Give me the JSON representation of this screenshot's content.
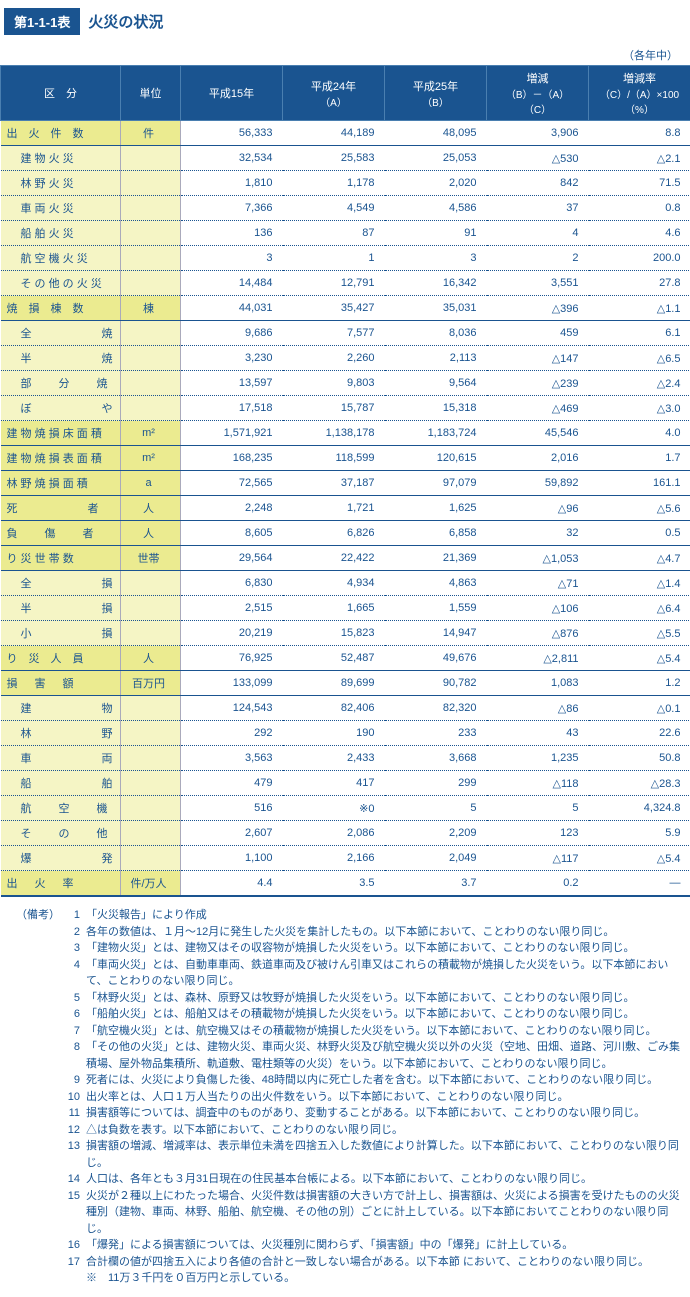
{
  "header": {
    "tab": "第1-1-1表",
    "title": "火災の状況"
  },
  "unit_note": "（各年中）",
  "columns": [
    {
      "label": "区　分"
    },
    {
      "label": "単位"
    },
    {
      "label": "平成15年"
    },
    {
      "label": "平成24年",
      "sub": "（A）"
    },
    {
      "label": "平成25年",
      "sub": "（B）"
    },
    {
      "label": "増減",
      "sub": "（B）－（A）\n（C）"
    },
    {
      "label": "増減率",
      "sub": "（C）/（A）×100\n（%）"
    }
  ],
  "rows": [
    {
      "main": true,
      "cat": "出　火　件　数",
      "unit": "件",
      "v": [
        "56,333",
        "44,189",
        "48,095",
        "3,906",
        "8.8"
      ]
    },
    {
      "cat": "建 物 火 災",
      "indent": true,
      "unit": "",
      "v": [
        "32,534",
        "25,583",
        "25,053",
        "△530",
        "△2.1"
      ]
    },
    {
      "cat": "林 野 火 災",
      "indent": true,
      "unit": "",
      "v": [
        "1,810",
        "1,178",
        "2,020",
        "842",
        "71.5"
      ]
    },
    {
      "cat": "車 両 火 災",
      "indent": true,
      "unit": "",
      "v": [
        "7,366",
        "4,549",
        "4,586",
        "37",
        "0.8"
      ]
    },
    {
      "cat": "船 舶 火 災",
      "indent": true,
      "unit": "",
      "v": [
        "136",
        "87",
        "91",
        "4",
        "4.6"
      ]
    },
    {
      "cat": "航 空 機 火 災",
      "indent": true,
      "unit": "",
      "v": [
        "3",
        "1",
        "3",
        "2",
        "200.0"
      ]
    },
    {
      "cat": "そ の 他 の 火 災",
      "indent": true,
      "unit": "",
      "v": [
        "14,484",
        "12,791",
        "16,342",
        "3,551",
        "27.8"
      ]
    },
    {
      "main": true,
      "cat": "焼　損　棟　数",
      "unit": "棟",
      "v": [
        "44,031",
        "35,427",
        "35,031",
        "△396",
        "△1.1"
      ]
    },
    {
      "cat": "全　　焼",
      "indent": true,
      "sp": "sp3",
      "unit": "",
      "v": [
        "9,686",
        "7,577",
        "8,036",
        "459",
        "6.1"
      ]
    },
    {
      "cat": "半　　焼",
      "indent": true,
      "sp": "sp3",
      "unit": "",
      "v": [
        "3,230",
        "2,260",
        "2,113",
        "△147",
        "△6.5"
      ]
    },
    {
      "cat": "部　分　焼",
      "indent": true,
      "sp": "sp2",
      "unit": "",
      "v": [
        "13,597",
        "9,803",
        "9,564",
        "△239",
        "△2.4"
      ]
    },
    {
      "cat": "ぼ　　や",
      "indent": true,
      "sp": "sp3",
      "unit": "",
      "v": [
        "17,518",
        "15,787",
        "15,318",
        "△469",
        "△3.0"
      ]
    },
    {
      "main": true,
      "cat": "建 物 焼 損 床 面 積",
      "unit": "m²",
      "v": [
        "1,571,921",
        "1,138,178",
        "1,183,724",
        "45,546",
        "4.0"
      ]
    },
    {
      "main": true,
      "cat": "建 物 焼 損 表 面 積",
      "unit": "m²",
      "v": [
        "168,235",
        "118,599",
        "120,615",
        "2,016",
        "1.7"
      ]
    },
    {
      "main": true,
      "cat": "林 野 焼 損 面 積",
      "unit": "a",
      "v": [
        "72,565",
        "37,187",
        "97,079",
        "59,892",
        "161.1"
      ]
    },
    {
      "main": true,
      "cat": "死　　者",
      "sp": "sp3",
      "unit": "人",
      "v": [
        "2,248",
        "1,721",
        "1,625",
        "△96",
        "△5.6"
      ]
    },
    {
      "main": true,
      "cat": "負　傷　者",
      "sp": "sp2",
      "unit": "人",
      "v": [
        "8,605",
        "6,826",
        "6,858",
        "32",
        "0.5"
      ]
    },
    {
      "main": true,
      "cat": "り 災 世 帯 数",
      "unit": "世帯",
      "v": [
        "29,564",
        "22,422",
        "21,369",
        "△1,053",
        "△4.7"
      ]
    },
    {
      "cat": "全　　損",
      "indent": true,
      "sp": "sp3",
      "unit": "",
      "v": [
        "6,830",
        "4,934",
        "4,863",
        "△71",
        "△1.4"
      ]
    },
    {
      "cat": "半　　損",
      "indent": true,
      "sp": "sp3",
      "unit": "",
      "v": [
        "2,515",
        "1,665",
        "1,559",
        "△106",
        "△6.4"
      ]
    },
    {
      "cat": "小　　損",
      "indent": true,
      "sp": "sp3",
      "unit": "",
      "v": [
        "20,219",
        "15,823",
        "14,947",
        "△876",
        "△5.5"
      ]
    },
    {
      "main": true,
      "cat": "り　災　人　員",
      "unit": "人",
      "v": [
        "76,925",
        "52,487",
        "49,676",
        "△2,811",
        "△5.4"
      ]
    },
    {
      "main": true,
      "cat": "損　害　額",
      "sp": "sp",
      "unit": "百万円",
      "v": [
        "133,099",
        "89,699",
        "90,782",
        "1,083",
        "1.2"
      ]
    },
    {
      "cat": "建　　物",
      "indent": true,
      "sp": "sp3",
      "unit": "",
      "v": [
        "124,543",
        "82,406",
        "82,320",
        "△86",
        "△0.1"
      ]
    },
    {
      "cat": "林　　野",
      "indent": true,
      "sp": "sp3",
      "unit": "",
      "v": [
        "292",
        "190",
        "233",
        "43",
        "22.6"
      ]
    },
    {
      "cat": "車　　両",
      "indent": true,
      "sp": "sp3",
      "unit": "",
      "v": [
        "3,563",
        "2,433",
        "3,668",
        "1,235",
        "50.8"
      ]
    },
    {
      "cat": "船　　舶",
      "indent": true,
      "sp": "sp3",
      "unit": "",
      "v": [
        "479",
        "417",
        "299",
        "△118",
        "△28.3"
      ]
    },
    {
      "cat": "航　空　機",
      "indent": true,
      "sp": "sp2",
      "unit": "",
      "v": [
        "516",
        "※0",
        "5",
        "5",
        "4,324.8"
      ]
    },
    {
      "cat": "そ　の　他",
      "indent": true,
      "sp": "sp2",
      "unit": "",
      "v": [
        "2,607",
        "2,086",
        "2,209",
        "123",
        "5.9"
      ]
    },
    {
      "cat": "爆　　発",
      "indent": true,
      "sp": "sp3",
      "unit": "",
      "v": [
        "1,100",
        "2,166",
        "2,049",
        "△117",
        "△5.4"
      ]
    },
    {
      "main": true,
      "last": true,
      "cat": "出　火　率",
      "sp": "sp",
      "unit": "件/万人",
      "v": [
        "4.4",
        "3.5",
        "3.7",
        "0.2",
        "—"
      ]
    }
  ],
  "footnotes": {
    "prefix": "（備考）",
    "items": [
      "「火災報告」により作成",
      "各年の数値は、１月～12月に発生した火災を集計したもの。以下本節において、ことわりのない限り同じ。",
      "「建物火災」とは、建物又はその収容物が焼損した火災をいう。以下本節において、ことわりのない限り同じ。",
      "「車両火災」とは、自動車車両、鉄道車両及び被けん引車又はこれらの積載物が焼損した火災をいう。以下本節において、ことわりのない限り同じ。",
      "「林野火災」とは、森林、原野又は牧野が焼損した火災をいう。以下本節において、ことわりのない限り同じ。",
      "「船舶火災」とは、船舶又はその積載物が焼損した火災をいう。以下本節において、ことわりのない限り同じ。",
      "「航空機火災」とは、航空機又はその積載物が焼損した火災をいう。以下本節において、ことわりのない限り同じ。",
      "「その他の火災」とは、建物火災、車両火災、林野火災及び航空機火災以外の火災（空地、田畑、道路、河川敷、ごみ集積場、屋外物品集積所、軌道敷、電柱類等の火災）をいう。以下本節において、ことわりのない限り同じ。",
      "死者には、火災により負傷した後、48時間以内に死亡した者を含む。以下本節において、ことわりのない限り同じ。",
      "出火率とは、人口１万人当たりの出火件数をいう。以下本節において、ことわりのない限り同じ。",
      "損害額等については、調査中のものがあり、変動することがある。以下本節において、ことわりのない限り同じ。",
      "△は負数を表す。以下本節において、ことわりのない限り同じ。",
      "損害額の増減、増減率は、表示単位未満を四捨五入した数値により計算した。以下本節において、ことわりのない限り同じ。",
      "人口は、各年とも３月31日現在の住民基本台帳による。以下本節において、ことわりのない限り同じ。",
      "火災が２種以上にわたった場合、火災件数は損害額の大きい方で計上し、損害額は、火災による損害を受けたものの火災種別（建物、車両、林野、船舶、航空機、その他の別）ごとに計上している。以下本節においてことわりのない限り同じ。",
      "「爆発」による損害額については、火災種別に関わらず、「損害額」中の「爆発」に計上している。",
      "合計欄の値が四捨五入により各値の合計と一致しない場合がある。以下本節 において、ことわりのない限り同じ。"
    ],
    "asterisk": "※　11万３千円を０百万円と示している。"
  }
}
